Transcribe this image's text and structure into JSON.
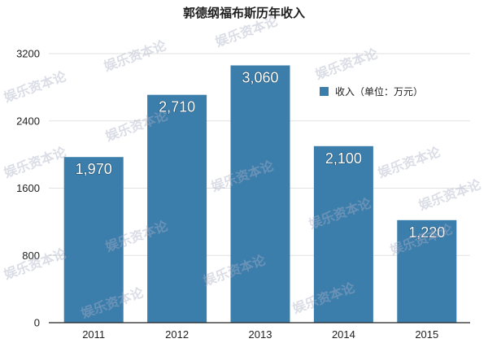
{
  "chart_data": {
    "type": "bar",
    "title": "郭德纲福布斯历年收入",
    "categories": [
      "2011",
      "2012",
      "2013",
      "2014",
      "2015"
    ],
    "series": [
      {
        "name": "收入（单位：万元）",
        "values": [
          1970,
          2710,
          3060,
          2100,
          1220
        ],
        "data_labels": [
          "1,970",
          "2,710",
          "3,060",
          "2,100",
          "1,220"
        ]
      }
    ],
    "ylim": [
      0,
      3200
    ],
    "yticks": [
      0,
      800,
      1600,
      2400,
      3200
    ],
    "grid": true,
    "legend": {
      "position": "top-right"
    }
  },
  "colors": {
    "bar": "#3b7dab",
    "grid": "#e2e2e2",
    "baseline": "#222222",
    "legend_swatch": "#3b7dab"
  },
  "watermark": "娱乐资本论"
}
